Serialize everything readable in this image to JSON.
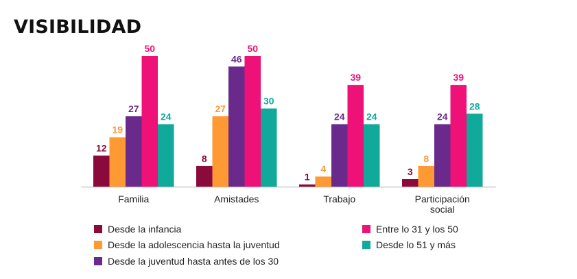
{
  "title": "VISIBILIDAD",
  "chart_data": {
    "type": "bar",
    "title": "VISIBILIDAD",
    "xlabel": "",
    "ylabel": "",
    "ylim": [
      0,
      50
    ],
    "categories": [
      "Familia",
      "Amistades",
      "Trabajo",
      "Participación social"
    ],
    "category_lines": [
      [
        "Familia"
      ],
      [
        "Amistades"
      ],
      [
        "Trabajo"
      ],
      [
        "Participación",
        "social"
      ]
    ],
    "series": [
      {
        "name": "Desde la infancia",
        "color": "#8b0a3c",
        "values": [
          12,
          8,
          1,
          3
        ]
      },
      {
        "name": "Desde la adolescencia hasta la juventud",
        "color": "#ff9933",
        "values": [
          19,
          27,
          4,
          8
        ]
      },
      {
        "name": "Desde la juventud hasta antes de los 30",
        "color": "#6a2a8c",
        "values": [
          27,
          46,
          24,
          24
        ]
      },
      {
        "name": "Entre lo 31 y los 50",
        "color": "#ee1177",
        "values": [
          50,
          50,
          39,
          39
        ]
      },
      {
        "name": "Desde lo 51 y más",
        "color": "#10a99a",
        "values": [
          24,
          30,
          24,
          28
        ]
      }
    ],
    "legend_position": "bottom",
    "grid": false
  }
}
